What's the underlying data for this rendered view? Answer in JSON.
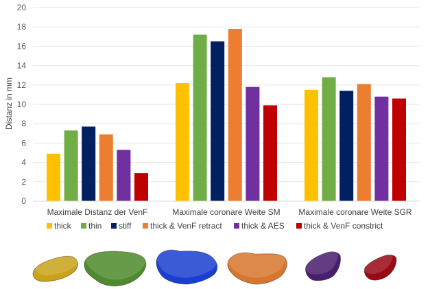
{
  "chart_data": {
    "type": "bar",
    "ylabel": "Distanz in mm",
    "xlabel": "",
    "ylim": [
      0,
      20
    ],
    "yticks": [
      0,
      2,
      4,
      6,
      8,
      10,
      12,
      14,
      16,
      18,
      20
    ],
    "grid": true,
    "legend_position": "bottom",
    "categories": [
      "Maximale Distanz der VenF",
      "Maximale coronare Weite SM",
      "Maximale coronare Weite SGR"
    ],
    "series": [
      {
        "name": "thick",
        "color": "#FFC000",
        "values": [
          4.9,
          12.2,
          11.5
        ]
      },
      {
        "name": "thin",
        "color": "#70AD47",
        "values": [
          7.3,
          17.2,
          12.8
        ]
      },
      {
        "name": "stiff",
        "color": "#002060",
        "values": [
          7.7,
          16.5,
          11.4
        ]
      },
      {
        "name": "thick & VenF retract",
        "color": "#ED7D31",
        "values": [
          6.9,
          17.8,
          12.1
        ]
      },
      {
        "name": "thick & AES",
        "color": "#7030A0",
        "values": [
          5.3,
          11.8,
          10.8
        ]
      },
      {
        "name": "thick & VenF constrict",
        "color": "#C00000",
        "values": [
          2.9,
          9.9,
          10.6
        ]
      }
    ]
  },
  "models": [
    {
      "name": "thick",
      "color": "#C9A21A"
    },
    {
      "name": "thin",
      "color": "#4E8A2E"
    },
    {
      "name": "stiff",
      "color": "#1A3FD0"
    },
    {
      "name": "thick & VenF retract",
      "color": "#D8762E"
    },
    {
      "name": "thick & AES",
      "color": "#4A1E6E"
    },
    {
      "name": "thick & VenF constrict",
      "color": "#9A0A14"
    }
  ]
}
